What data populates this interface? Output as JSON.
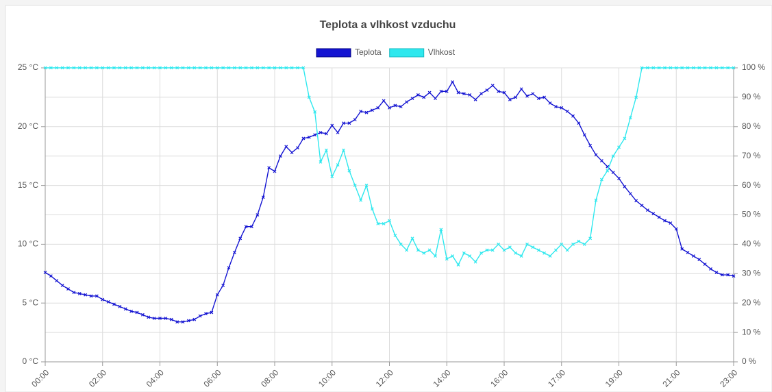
{
  "chart_data": {
    "type": "line",
    "title": "Teplota a vlhkost vzduchu",
    "categories": [
      "00:00",
      null,
      null,
      null,
      null,
      null,
      null,
      null,
      null,
      null,
      "02:00",
      null,
      null,
      null,
      null,
      null,
      null,
      null,
      null,
      null,
      "04:00",
      null,
      null,
      null,
      null,
      null,
      null,
      null,
      null,
      null,
      "06:00",
      null,
      null,
      null,
      null,
      null,
      null,
      null,
      null,
      null,
      "08:00",
      null,
      null,
      null,
      null,
      null,
      null,
      null,
      null,
      null,
      "10:00",
      null,
      null,
      null,
      null,
      null,
      null,
      null,
      null,
      null,
      "12:00",
      null,
      null,
      null,
      null,
      null,
      null,
      null,
      null,
      null,
      "14:00",
      null,
      null,
      null,
      null,
      null,
      null,
      null,
      null,
      null,
      "16:00",
      null,
      null,
      null,
      null,
      null,
      null,
      null,
      null,
      null,
      "17:00",
      null,
      null,
      null,
      null,
      null,
      null,
      null,
      null,
      null,
      "19:00",
      null,
      null,
      null,
      null,
      null,
      null,
      null,
      null,
      null,
      "21:00",
      null,
      null,
      null,
      null,
      null,
      null,
      null,
      null,
      null,
      "23:00"
    ],
    "series": [
      {
        "name": "Teplota",
        "color": "#1414d2",
        "values": [
          7.6,
          7.3,
          6.9,
          6.5,
          6.2,
          5.9,
          5.8,
          5.7,
          5.6,
          5.6,
          5.3,
          5.1,
          4.9,
          4.7,
          4.5,
          4.3,
          4.2,
          4.0,
          3.8,
          3.7,
          3.7,
          3.7,
          3.6,
          3.4,
          3.4,
          3.5,
          3.6,
          3.9,
          4.1,
          4.2,
          5.7,
          6.5,
          8,
          9.3,
          10.5,
          11.5,
          11.5,
          12.5,
          14,
          16.5,
          16.2,
          17.5,
          18.3,
          17.8,
          18.2,
          19,
          19.1,
          19.3,
          19.5,
          19.4,
          20.1,
          19.5,
          20.3,
          20.3,
          20.6,
          21.3,
          21.2,
          21.4,
          21.6,
          22.2,
          21.6,
          21.8,
          21.7,
          22.1,
          22.4,
          22.7,
          22.5,
          22.9,
          22.4,
          23,
          23,
          23.8,
          22.9,
          22.8,
          22.7,
          22.3,
          22.8,
          23.1,
          23.5,
          23,
          22.9,
          22.3,
          22.5,
          23.2,
          22.6,
          22.8,
          22.4,
          22.5,
          22,
          21.7,
          21.6,
          21.3,
          20.9,
          20.3,
          19.3,
          18.4,
          17.6,
          17.1,
          16.6,
          16.1,
          15.6,
          14.9,
          14.3,
          13.7,
          13.3,
          12.9,
          12.6,
          12.3,
          12.0,
          11.8,
          11.3,
          9.6,
          9.3,
          9.0,
          8.7,
          8.3,
          7.9,
          7.6,
          7.4,
          7.4,
          7.3
        ]
      },
      {
        "name": "Vlhkost",
        "color": "#2ee8ee",
        "axis": "y2",
        "values": [
          100,
          100,
          100,
          100,
          100,
          100,
          100,
          100,
          100,
          100,
          100,
          100,
          100,
          100,
          100,
          100,
          100,
          100,
          100,
          100,
          100,
          100,
          100,
          100,
          100,
          100,
          100,
          100,
          100,
          100,
          100,
          100,
          100,
          100,
          100,
          100,
          100,
          100,
          100,
          100,
          100,
          100,
          100,
          100,
          100,
          100,
          90,
          85,
          68,
          72,
          63,
          67,
          72,
          65,
          60,
          55,
          60,
          52,
          47,
          47,
          48,
          43,
          40,
          38,
          42,
          38,
          37,
          38,
          36,
          45,
          35,
          36,
          33,
          37,
          36,
          34,
          37,
          38,
          38,
          40,
          38,
          39,
          37,
          36,
          40,
          39,
          38,
          37,
          36,
          38,
          40,
          38,
          40,
          41,
          40,
          42,
          55,
          62,
          65,
          70,
          73,
          76,
          83,
          90,
          100,
          100,
          100,
          100,
          100,
          100,
          100,
          100,
          100,
          100,
          100,
          100,
          100,
          100,
          100,
          100,
          100
        ]
      }
    ],
    "ylim": [
      0,
      25
    ],
    "yticks": [
      {
        "value": 0,
        "label": "0 °C"
      },
      {
        "value": 5,
        "label": "5 °C"
      },
      {
        "value": 10,
        "label": "10 °C"
      },
      {
        "value": 15,
        "label": "15 °C"
      },
      {
        "value": 20,
        "label": "20 °C"
      },
      {
        "value": 25,
        "label": "25 °C"
      }
    ],
    "y2lim": [
      0,
      100
    ],
    "y2ticks": [
      {
        "value": 0,
        "label": "0 %"
      },
      {
        "value": 10,
        "label": "10 %"
      },
      {
        "value": 20,
        "label": "20 %"
      },
      {
        "value": 30,
        "label": "30 %"
      },
      {
        "value": 40,
        "label": "40 %"
      },
      {
        "value": 50,
        "label": "50 %"
      },
      {
        "value": 60,
        "label": "60 %"
      },
      {
        "value": 70,
        "label": "70 %"
      },
      {
        "value": 80,
        "label": "80 %"
      },
      {
        "value": 90,
        "label": "90 %"
      },
      {
        "value": 100,
        "label": "100 %"
      }
    ],
    "grid": true,
    "legend": "top"
  }
}
